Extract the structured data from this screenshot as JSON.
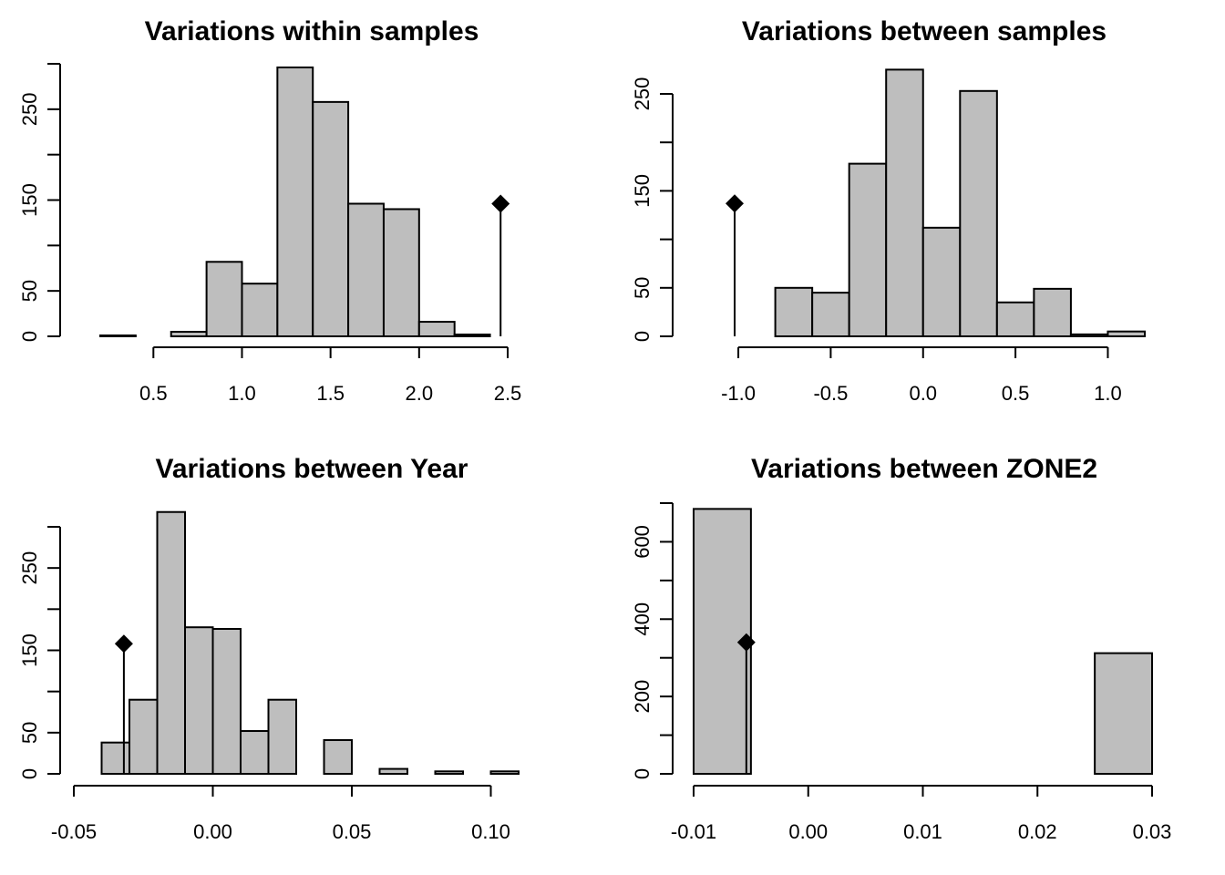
{
  "chart_data": [
    {
      "type": "bar",
      "title": "Variations within samples",
      "xlabel": "",
      "ylabel": "",
      "bin_edges": [
        0.2,
        0.4,
        0.6,
        0.8,
        1.0,
        1.2,
        1.4,
        1.6,
        1.8,
        2.0,
        2.2,
        2.4
      ],
      "values": [
        1,
        0,
        5,
        82,
        58,
        296,
        258,
        146,
        140,
        16,
        2
      ],
      "observed": {
        "x": 2.46,
        "y": 146
      },
      "xlim": [
        0.2,
        2.5
      ],
      "ylim": [
        0,
        300
      ],
      "x_ticks": [
        0.5,
        1.0,
        1.5,
        2.0,
        2.5
      ],
      "x_tick_labels": [
        "0.5",
        "1.0",
        "1.5",
        "2.0",
        "2.5"
      ],
      "y_ticks": [
        0,
        50,
        100,
        150,
        200,
        250,
        300
      ],
      "y_tick_labels": [
        "0",
        "50",
        "",
        "150",
        "",
        "250",
        ""
      ]
    },
    {
      "type": "bar",
      "title": "Variations between samples",
      "xlabel": "",
      "ylabel": "",
      "bin_edges": [
        -0.8,
        -0.6,
        -0.4,
        -0.2,
        0.0,
        0.2,
        0.4,
        0.6,
        0.8,
        1.0,
        1.2
      ],
      "values": [
        50,
        45,
        178,
        275,
        112,
        253,
        35,
        49,
        2,
        5
      ],
      "observed": {
        "x": -1.02,
        "y": 137
      },
      "xlim": [
        -1.02,
        1.2
      ],
      "ylim": [
        0,
        275
      ],
      "x_ticks": [
        -1.0,
        -0.5,
        0.0,
        0.5,
        1.0
      ],
      "x_tick_labels": [
        "-1.0",
        "-0.5",
        "0.0",
        "0.5",
        "1.0"
      ],
      "y_ticks": [
        0,
        50,
        100,
        150,
        200,
        250
      ],
      "y_tick_labels": [
        "0",
        "50",
        "",
        "150",
        "",
        "250"
      ]
    },
    {
      "type": "bar",
      "title": "Variations between Year",
      "xlabel": "",
      "ylabel": "",
      "bin_edges": [
        -0.04,
        -0.03,
        -0.02,
        -0.01,
        0.0,
        0.01,
        0.02,
        0.03,
        0.04,
        0.05,
        0.06,
        0.07,
        0.08,
        0.09,
        0.1,
        0.11
      ],
      "values": [
        38,
        90,
        318,
        178,
        176,
        52,
        90,
        0,
        41,
        0,
        6,
        0,
        3,
        0,
        3
      ],
      "observed": {
        "x": -0.032,
        "y": 158
      },
      "xlim": [
        -0.05,
        0.11
      ],
      "ylim": [
        0,
        300
      ],
      "x_ticks": [
        -0.05,
        0.0,
        0.05,
        0.1
      ],
      "x_tick_labels": [
        "-0.05",
        "0.00",
        "0.05",
        "0.10"
      ],
      "y_ticks": [
        0,
        50,
        100,
        150,
        200,
        250,
        300
      ],
      "y_tick_labels": [
        "0",
        "50",
        "",
        "150",
        "",
        "250",
        ""
      ]
    },
    {
      "type": "bar",
      "title": "Variations between ZONE2",
      "xlabel": "",
      "ylabel": "",
      "bin_edges": [
        -0.01,
        -0.005,
        0.0,
        0.005,
        0.01,
        0.015,
        0.02,
        0.025,
        0.03
      ],
      "values": [
        685,
        0,
        0,
        0,
        0,
        0,
        0,
        312
      ],
      "observed": {
        "x": -0.0054,
        "y": 340
      },
      "xlim": [
        -0.01,
        0.03
      ],
      "ylim": [
        0,
        700
      ],
      "x_ticks": [
        -0.01,
        0.0,
        0.01,
        0.02,
        0.03
      ],
      "x_tick_labels": [
        "-0.01",
        "0.00",
        "0.01",
        "0.02",
        "0.03"
      ],
      "y_ticks": [
        0,
        100,
        200,
        300,
        400,
        500,
        600,
        700
      ],
      "y_tick_labels": [
        "0",
        "",
        "200",
        "",
        "400",
        "",
        "600",
        ""
      ]
    }
  ]
}
